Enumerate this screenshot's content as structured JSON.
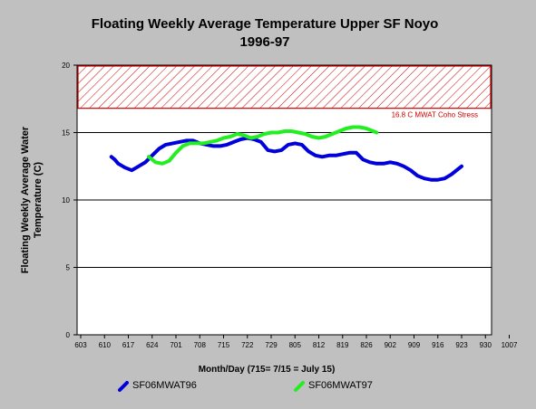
{
  "chart_data": {
    "type": "line",
    "title": "Floating Weekly Average Temperature Upper SF Noyo",
    "subtitle": "1996-97",
    "ylabel_line1": "Floating Weekly Average Water",
    "ylabel_line2": "Temperature (C)",
    "xlabel": "Month/Day (715= 7/15 = July 15)",
    "ylim": [
      0,
      20
    ],
    "yticks": [
      "0",
      "5",
      "10",
      "15",
      "20"
    ],
    "xticks": [
      "603",
      "610",
      "617",
      "624",
      "701",
      "708",
      "715",
      "722",
      "729",
      "805",
      "812",
      "819",
      "826",
      "902",
      "909",
      "916",
      "923",
      "930",
      "1007"
    ],
    "threshold": {
      "value": 16.8,
      "label": "16.8 C MWAT Coho Stress",
      "color": "#cc0000"
    },
    "grid": "horizontal",
    "legend_position": "bottom",
    "series": [
      {
        "name": "SF06MWAT96",
        "color": "#0000dd",
        "points": [
          [
            9,
            13.2
          ],
          [
            10,
            13.0
          ],
          [
            11,
            12.7
          ],
          [
            13,
            12.4
          ],
          [
            15,
            12.2
          ],
          [
            17,
            12.5
          ],
          [
            19,
            12.8
          ],
          [
            21,
            13.3
          ],
          [
            23,
            13.8
          ],
          [
            25,
            14.1
          ],
          [
            27,
            14.2
          ],
          [
            29,
            14.3
          ],
          [
            31,
            14.4
          ],
          [
            33,
            14.4
          ],
          [
            35,
            14.2
          ],
          [
            37,
            14.1
          ],
          [
            39,
            14.0
          ],
          [
            41,
            14.0
          ],
          [
            43,
            14.1
          ],
          [
            45,
            14.3
          ],
          [
            47,
            14.5
          ],
          [
            49,
            14.6
          ],
          [
            51,
            14.5
          ],
          [
            53,
            14.3
          ],
          [
            55,
            13.7
          ],
          [
            57,
            13.6
          ],
          [
            59,
            13.7
          ],
          [
            61,
            14.1
          ],
          [
            63,
            14.2
          ],
          [
            65,
            14.1
          ],
          [
            67,
            13.6
          ],
          [
            69,
            13.3
          ],
          [
            71,
            13.2
          ],
          [
            73,
            13.3
          ],
          [
            75,
            13.3
          ],
          [
            77,
            13.4
          ],
          [
            79,
            13.5
          ],
          [
            81,
            13.5
          ],
          [
            83,
            13.0
          ],
          [
            85,
            12.8
          ],
          [
            87,
            12.7
          ],
          [
            89,
            12.7
          ],
          [
            91,
            12.8
          ],
          [
            93,
            12.7
          ],
          [
            95,
            12.5
          ],
          [
            97,
            12.2
          ],
          [
            99,
            11.8
          ],
          [
            101,
            11.6
          ],
          [
            103,
            11.5
          ],
          [
            105,
            11.5
          ],
          [
            107,
            11.6
          ],
          [
            109,
            11.9
          ],
          [
            111,
            12.3
          ],
          [
            112,
            12.5
          ]
        ]
      },
      {
        "name": "SF06MWAT97",
        "color": "#22ee22",
        "points": [
          [
            20,
            13.2
          ],
          [
            21,
            13.0
          ],
          [
            22,
            12.8
          ],
          [
            24,
            12.7
          ],
          [
            26,
            12.9
          ],
          [
            28,
            13.5
          ],
          [
            30,
            14.0
          ],
          [
            32,
            14.2
          ],
          [
            34,
            14.2
          ],
          [
            36,
            14.2
          ],
          [
            38,
            14.3
          ],
          [
            40,
            14.4
          ],
          [
            42,
            14.6
          ],
          [
            44,
            14.7
          ],
          [
            46,
            14.9
          ],
          [
            48,
            14.8
          ],
          [
            50,
            14.6
          ],
          [
            52,
            14.7
          ],
          [
            54,
            14.9
          ],
          [
            56,
            15.0
          ],
          [
            58,
            15.0
          ],
          [
            60,
            15.1
          ],
          [
            62,
            15.1
          ],
          [
            64,
            15.0
          ],
          [
            66,
            14.9
          ],
          [
            68,
            14.7
          ],
          [
            70,
            14.6
          ],
          [
            72,
            14.7
          ],
          [
            74,
            14.9
          ],
          [
            76,
            15.1
          ],
          [
            78,
            15.3
          ],
          [
            80,
            15.4
          ],
          [
            82,
            15.4
          ],
          [
            84,
            15.3
          ],
          [
            86,
            15.1
          ],
          [
            87,
            15.0
          ]
        ]
      }
    ]
  }
}
